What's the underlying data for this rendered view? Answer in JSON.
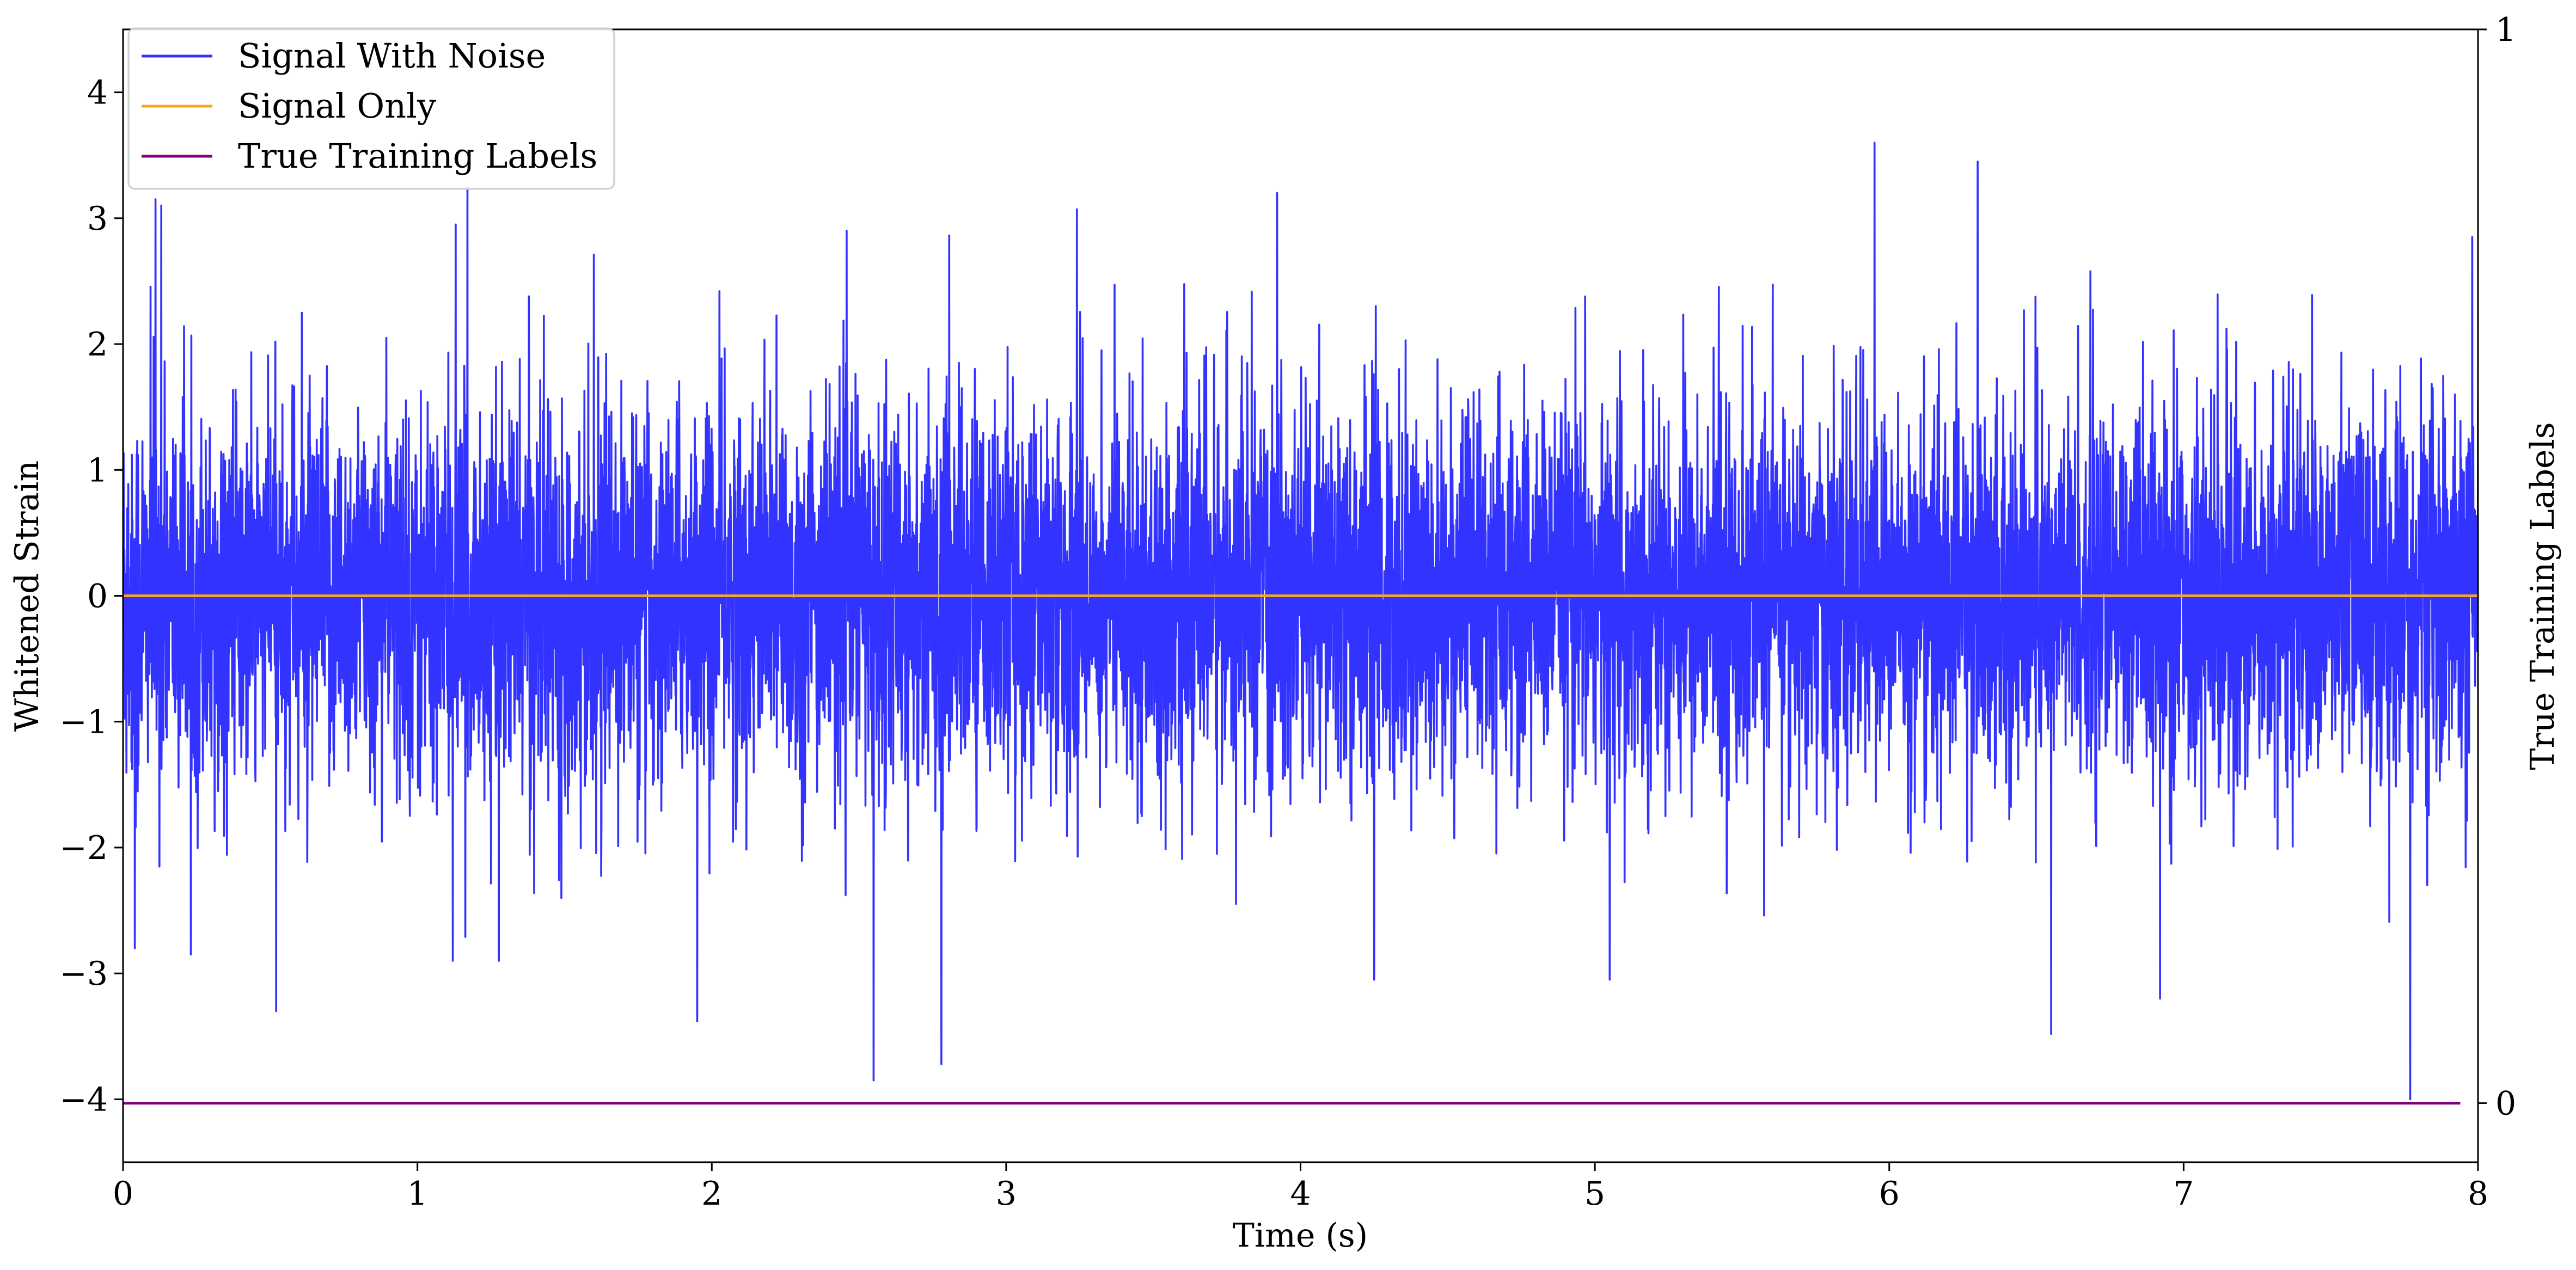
{
  "chart_data": {
    "type": "line",
    "xlabel": "Time (s)",
    "ylabel": "Whitened Strain",
    "y2label": "True Training Labels",
    "xlim": [
      0,
      8
    ],
    "ylim": [
      -4.5,
      4.5
    ],
    "y2lim": [
      -0.055,
      1.0
    ],
    "x_ticks": [
      "0",
      "1",
      "2",
      "3",
      "4",
      "5",
      "6",
      "7",
      "8"
    ],
    "y_ticks": [
      "−4",
      "−3",
      "−2",
      "−1",
      "0",
      "1",
      "2",
      "3",
      "4"
    ],
    "y2_ticks": [
      "0",
      "1"
    ],
    "legend_position": "upper-left",
    "series": [
      {
        "name": "Signal With Noise",
        "color": "#3333ff",
        "x_range": [
          0,
          8
        ],
        "typical_range": [
          -1.5,
          1.5
        ],
        "spikes": [
          {
            "x": 0.11,
            "y": 3.15
          },
          {
            "x": 0.13,
            "y": 3.1
          },
          {
            "x": 1.17,
            "y": 3.25
          },
          {
            "x": 1.13,
            "y": 2.95
          },
          {
            "x": 3.92,
            "y": 3.2
          },
          {
            "x": 5.95,
            "y": 3.6
          },
          {
            "x": 6.3,
            "y": 3.45
          },
          {
            "x": 3.24,
            "y": 3.07
          },
          {
            "x": 7.98,
            "y": 2.85
          },
          {
            "x": 0.52,
            "y": -3.3
          },
          {
            "x": 1.95,
            "y": -3.38
          },
          {
            "x": 2.55,
            "y": -3.85
          },
          {
            "x": 2.78,
            "y": -3.72
          },
          {
            "x": 4.25,
            "y": -3.05
          },
          {
            "x": 5.05,
            "y": -3.05
          },
          {
            "x": 6.55,
            "y": -3.48
          },
          {
            "x": 6.92,
            "y": -3.2
          },
          {
            "x": 7.77,
            "y": -4.0
          },
          {
            "x": 0.04,
            "y": -2.8
          },
          {
            "x": 0.23,
            "y": -2.85
          },
          {
            "x": 1.12,
            "y": -2.9
          }
        ]
      },
      {
        "name": "Signal Only",
        "color": "#f5a623",
        "x": [
          0,
          8
        ],
        "y": [
          0,
          0
        ]
      },
      {
        "name": "True Training Labels",
        "color": "#800080",
        "axis": "right",
        "x": [
          0,
          7.94
        ],
        "y": [
          0,
          0
        ]
      }
    ]
  }
}
